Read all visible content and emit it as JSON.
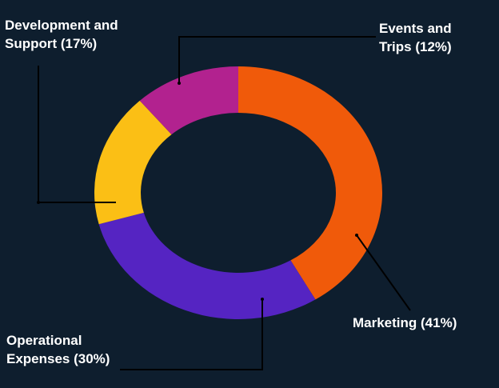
{
  "chart_data": {
    "type": "pie",
    "variant": "donut",
    "title": "",
    "slices": [
      {
        "label": "Marketing",
        "value": 41,
        "color": "#f05a0a"
      },
      {
        "label": "Operational Expenses",
        "value": 30,
        "color": "#5524c2"
      },
      {
        "label": "Development and Support",
        "value": 17,
        "color": "#fbbf15"
      },
      {
        "label": "Events and Trips",
        "value": 12,
        "color": "#b2228f"
      }
    ],
    "start_angle": "12 o'clock",
    "direction": "clockwise",
    "legend": "none",
    "labels": {
      "development": {
        "line1": "Development and",
        "line2": "Support (17%)"
      },
      "events": {
        "line1": "Events and",
        "line2": "Trips (12%)"
      },
      "marketing": {
        "line1": "Marketing (41%)"
      },
      "operational": {
        "line1": "Operational",
        "line2": "Expenses (30%)"
      }
    }
  },
  "colors": {
    "background": "#0e1e2e",
    "text": "#ffffff",
    "leader": "#000000"
  }
}
